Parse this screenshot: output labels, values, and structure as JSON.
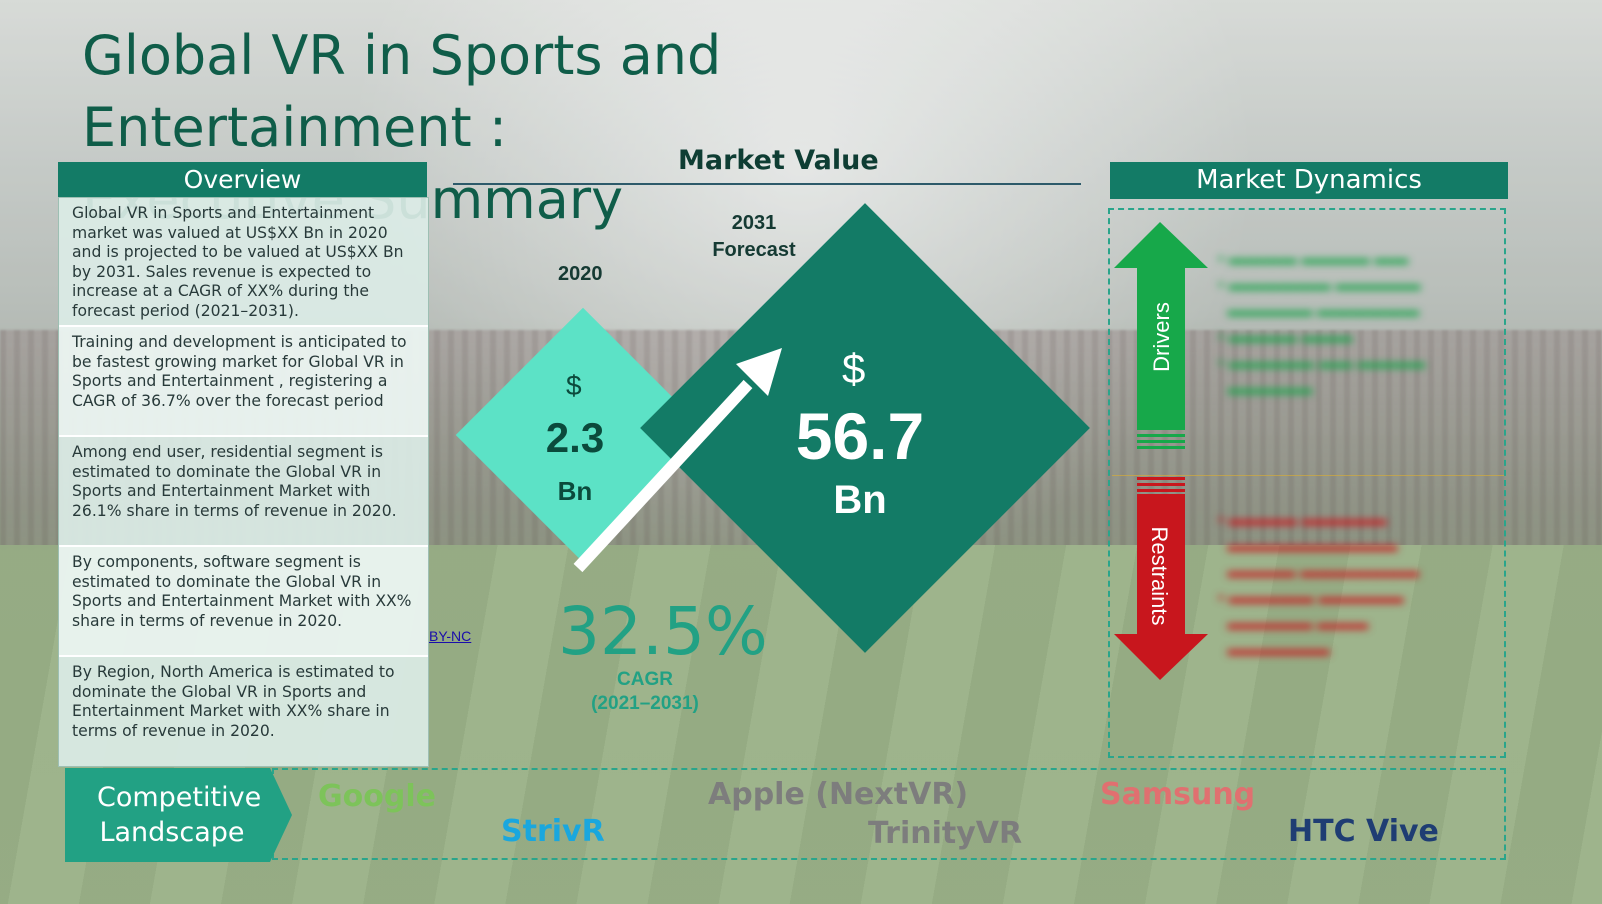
{
  "title_line1": "Global VR in Sports and Entertainment :",
  "title_line2": "Executive Summary",
  "overview": {
    "heading": "Overview",
    "items": [
      "Global VR in Sports and Entertainment  market was valued at US$XX Bn in 2020 and is projected to be valued at US$XX Bn by 2031. Sales revenue is expected to increase at a CAGR of XX% during the forecast period (2021–2031).",
      "Training and development is anticipated to be fastest growing market for Global VR in Sports and Entertainment , registering a CAGR of 36.7% over the forecast period",
      "Among end user, residential segment is estimated to dominate the Global VR in Sports and Entertainment  Market with 26.1% share in terms of revenue in 2020.",
      "By components, software segment is estimated to dominate the Global VR in Sports and Entertainment  Market with XX% share in terms of revenue in 2020.",
      "By Region, North America is estimated to dominate the Global VR in Sports and Entertainment  Market with XX% share in terms of revenue in 2020."
    ],
    "license_link": "BY-NC"
  },
  "market_value": {
    "heading": "Market Value",
    "year_start": "2020",
    "year_end_line1": "2031",
    "year_end_line2": "Forecast",
    "start_currency": "$",
    "start_value": "2.3",
    "start_unit": "Bn",
    "end_currency": "$",
    "end_value": "56.7",
    "end_unit": "Bn",
    "cagr_value": "32.5%",
    "cagr_label": "CAGR",
    "cagr_period": "(2021–2031)"
  },
  "market_dynamics": {
    "heading": "Market Dynamics",
    "drivers_label": "Drivers",
    "restraints_label": "Restraints",
    "drivers_color": "#17a84a",
    "restraints_color": "#c8161d"
  },
  "competitive_landscape": {
    "label_line1": "Competitive",
    "label_line2": "Landscape",
    "companies": {
      "google": "Google",
      "apple": "Apple  (NextVR)",
      "samsung": "Samsung",
      "strivr": "StrivR",
      "trinity": "TrinityVR",
      "htc": "HTC Vive"
    }
  },
  "colors": {
    "primary": "#137b66",
    "accent_light": "#5ce2c6",
    "cagr": "#22a184"
  }
}
